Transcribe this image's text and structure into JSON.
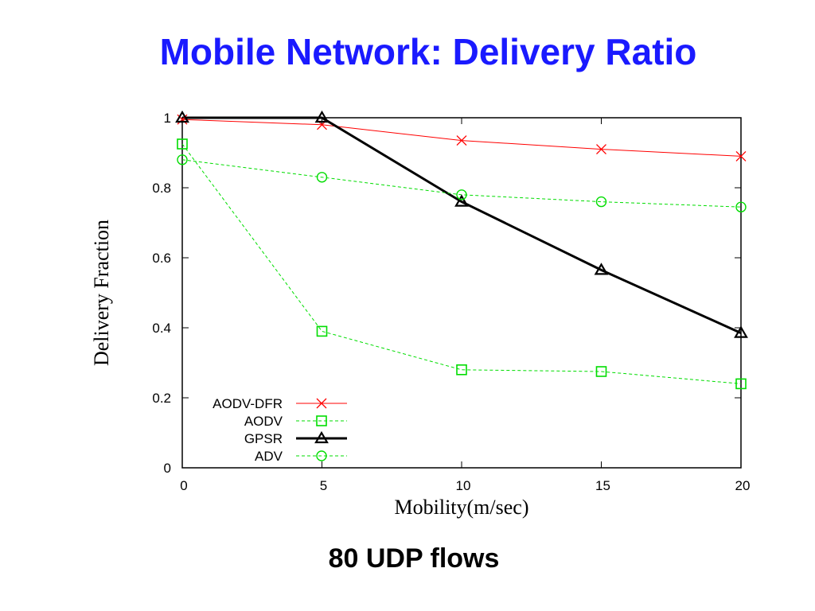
{
  "slide": {
    "title": "Mobile Network: Delivery Ratio",
    "caption": "80 UDP flows"
  },
  "chart_data": {
    "type": "line",
    "xlabel": "Mobility(m/sec)",
    "ylabel": "Delivery Fraction",
    "xlim": [
      0,
      20
    ],
    "ylim": [
      0,
      1
    ],
    "xticks": [
      0,
      5,
      10,
      15,
      20
    ],
    "yticks": [
      0,
      0.2,
      0.4,
      0.6,
      0.8,
      1
    ],
    "grid": false,
    "legend_position": "bottom-left",
    "x": [
      0,
      5,
      10,
      15,
      20
    ],
    "series": [
      {
        "name": "AODV-DFR",
        "values": [
          0.995,
          0.98,
          0.935,
          0.91,
          0.89
        ],
        "color": "#ff0000",
        "marker": "x",
        "dashed": false,
        "width": 1
      },
      {
        "name": "AODV",
        "values": [
          0.925,
          0.39,
          0.28,
          0.275,
          0.24
        ],
        "color": "#00dd00",
        "marker": "square",
        "dashed": true,
        "width": 1
      },
      {
        "name": "GPSR",
        "values": [
          1.0,
          1.0,
          0.76,
          0.565,
          0.385
        ],
        "color": "#000000",
        "marker": "triangle",
        "dashed": false,
        "width": 3
      },
      {
        "name": "ADV",
        "values": [
          0.88,
          0.83,
          0.78,
          0.76,
          0.745
        ],
        "color": "#00dd00",
        "marker": "circle",
        "dashed": true,
        "width": 1
      }
    ]
  }
}
